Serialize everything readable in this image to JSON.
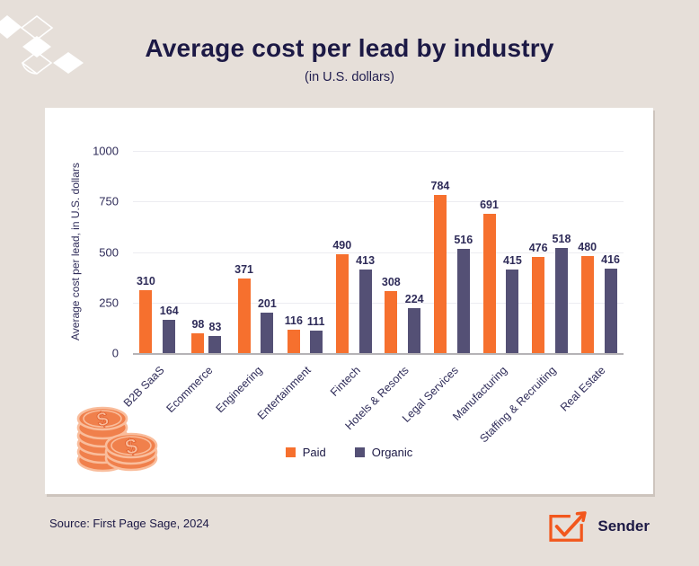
{
  "header": {
    "title": "Average cost per lead by industry",
    "subtitle": "(in U.S. dollars)"
  },
  "footer": {
    "source": "Source: First Page Sage, 2024",
    "brand_name": "Sender"
  },
  "icons": {
    "decoration": "diamond-pattern",
    "coins": "coins-stack",
    "brand": "envelope-checkmark-arrow"
  },
  "colors": {
    "background": "#e6dfd9",
    "card": "#ffffff",
    "title_text": "#1c1945",
    "body_text": "#2f2c59",
    "paid": "#f6702e",
    "organic": "#545075",
    "gridline": "#ececf1",
    "axis_line": "#b5b3b6",
    "brand_orange": "#f2571d",
    "coin_orange": "#f0804c",
    "coin_peach": "#f9bd9c"
  },
  "chart_data": {
    "type": "bar",
    "title": "Average cost per lead by industry",
    "subtitle": "(in U.S. dollars)",
    "xlabel": "",
    "ylabel": "Average cost per lead, in U.S. dollars",
    "ylim": [
      0,
      1000
    ],
    "yticks": [
      0,
      250,
      500,
      750,
      1000
    ],
    "grid": true,
    "legend_position": "bottom-center",
    "categories": [
      "B2B SaaS",
      "Ecommerce",
      "Engineering",
      "Entertainment",
      "Fintech",
      "Hotels & Resorts",
      "Legal Services",
      "Manufacturing",
      "Staffing & Recruiting",
      "Real Estate"
    ],
    "series": [
      {
        "name": "Paid",
        "color": "#f6702e",
        "values": [
          310,
          98,
          371,
          116,
          490,
          308,
          784,
          691,
          476,
          480
        ]
      },
      {
        "name": "Organic",
        "color": "#545075",
        "values": [
          164,
          83,
          201,
          111,
          413,
          224,
          516,
          415,
          518,
          416
        ]
      }
    ]
  },
  "legend": [
    {
      "label": "Paid",
      "color": "#f6702e"
    },
    {
      "label": "Organic",
      "color": "#545075"
    }
  ]
}
